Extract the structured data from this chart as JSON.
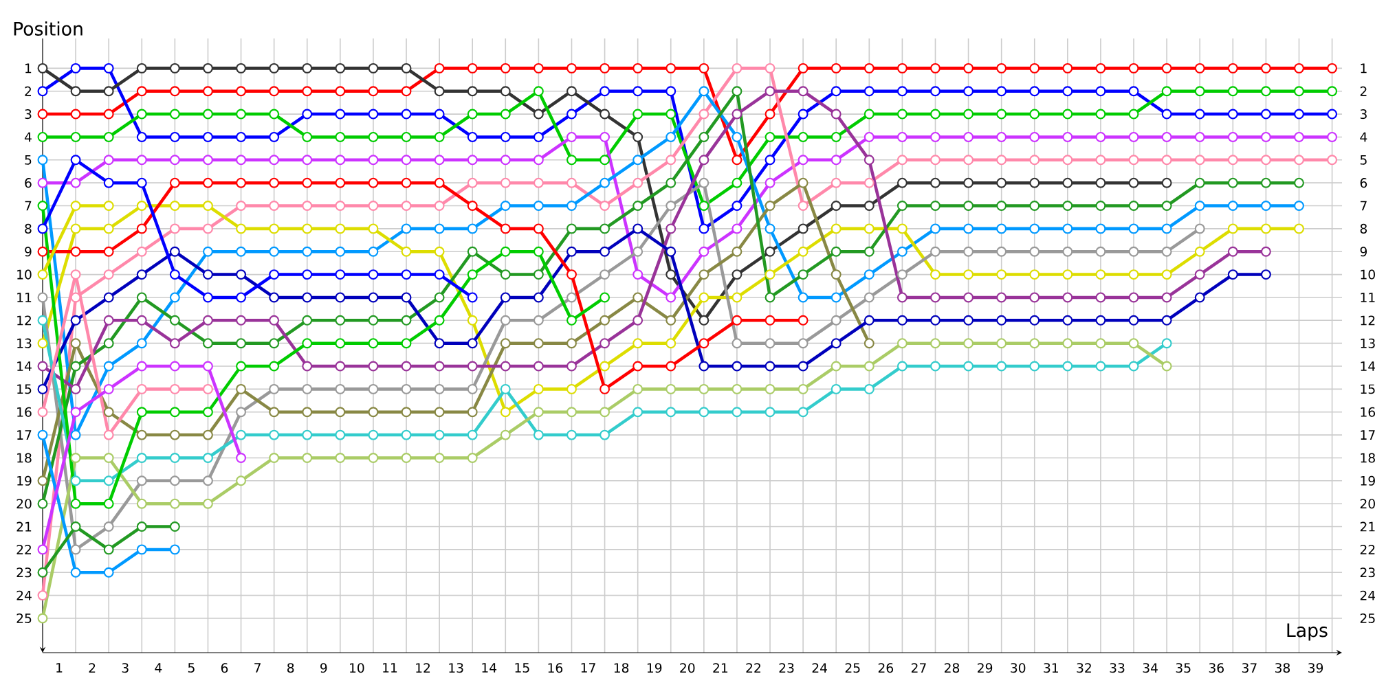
{
  "chart_data": {
    "type": "line",
    "xlabel": "Laps",
    "ylabel": "Position",
    "marker": "circle",
    "line_style": "solid",
    "grid": true,
    "x": [
      0,
      1,
      2,
      3,
      4,
      5,
      6,
      7,
      8,
      9,
      10,
      11,
      12,
      13,
      14,
      15,
      16,
      17,
      18,
      19,
      20,
      21,
      22,
      23,
      24,
      25,
      26,
      27,
      28,
      29,
      30,
      31,
      32,
      33,
      34,
      35,
      36,
      37,
      38,
      39
    ],
    "xlim": [
      0,
      39.3
    ],
    "ylim": [
      26.5,
      -0.3
    ],
    "y2lim": [
      26.5,
      -0.3
    ],
    "xticks": [
      {
        "value": 0,
        "label": null
      },
      {
        "value": 1,
        "label": null
      },
      {
        "value": 2,
        "label": null
      },
      {
        "value": 3,
        "label": null
      },
      {
        "value": 4,
        "label": null
      },
      {
        "value": 5,
        "label": null
      },
      {
        "value": 6,
        "label": null
      },
      {
        "value": 7,
        "label": null
      },
      {
        "value": 8,
        "label": null
      },
      {
        "value": 9,
        "label": null
      },
      {
        "value": 10,
        "label": null
      },
      {
        "value": 11,
        "label": null
      },
      {
        "value": 12,
        "label": null
      },
      {
        "value": 13,
        "label": null
      },
      {
        "value": 14,
        "label": null
      },
      {
        "value": 15,
        "label": null
      },
      {
        "value": 16,
        "label": null
      },
      {
        "value": 17,
        "label": null
      },
      {
        "value": 18,
        "label": null
      },
      {
        "value": 19,
        "label": null
      },
      {
        "value": 20,
        "label": null
      },
      {
        "value": 21,
        "label": null
      },
      {
        "value": 22,
        "label": null
      },
      {
        "value": 23,
        "label": null
      },
      {
        "value": 24,
        "label": null
      },
      {
        "value": 25,
        "label": null
      },
      {
        "value": 26,
        "label": null
      },
      {
        "value": 27,
        "label": null
      },
      {
        "value": 28,
        "label": null
      },
      {
        "value": 29,
        "label": null
      },
      {
        "value": 30,
        "label": null
      },
      {
        "value": 31,
        "label": null
      },
      {
        "value": 32,
        "label": null
      },
      {
        "value": 33,
        "label": null
      },
      {
        "value": 34,
        "label": null
      },
      {
        "value": 35,
        "label": null
      },
      {
        "value": 36,
        "label": null
      },
      {
        "value": 37,
        "label": null
      },
      {
        "value": 38,
        "label": null
      },
      {
        "value": 39,
        "label": null
      },
      {
        "value": 0.5,
        "label": "1"
      },
      {
        "value": 1.5,
        "label": "2"
      },
      {
        "value": 2.5,
        "label": "3"
      },
      {
        "value": 3.5,
        "label": "4"
      },
      {
        "value": 4.5,
        "label": "5"
      },
      {
        "value": 5.5,
        "label": "6"
      },
      {
        "value": 6.5,
        "label": "7"
      },
      {
        "value": 7.5,
        "label": "8"
      },
      {
        "value": 8.5,
        "label": "9"
      },
      {
        "value": 9.5,
        "label": "10"
      },
      {
        "value": 10.5,
        "label": "11"
      },
      {
        "value": 11.5,
        "label": "12"
      },
      {
        "value": 12.5,
        "label": "13"
      },
      {
        "value": 13.5,
        "label": "14"
      },
      {
        "value": 14.5,
        "label": "15"
      },
      {
        "value": 15.5,
        "label": "16"
      },
      {
        "value": 16.5,
        "label": "17"
      },
      {
        "value": 17.5,
        "label": "18"
      },
      {
        "value": 18.5,
        "label": "19"
      },
      {
        "value": 19.5,
        "label": "20"
      },
      {
        "value": 20.5,
        "label": "21"
      },
      {
        "value": 21.5,
        "label": "22"
      },
      {
        "value": 22.5,
        "label": "23"
      },
      {
        "value": 23.5,
        "label": "24"
      },
      {
        "value": 24.5,
        "label": "25"
      },
      {
        "value": 25.5,
        "label": "26"
      },
      {
        "value": 26.5,
        "label": "27"
      },
      {
        "value": 27.5,
        "label": "28"
      },
      {
        "value": 28.5,
        "label": "29"
      },
      {
        "value": 29.5,
        "label": "30"
      },
      {
        "value": 30.5,
        "label": "31"
      },
      {
        "value": 31.5,
        "label": "32"
      },
      {
        "value": 32.5,
        "label": "33"
      },
      {
        "value": 33.5,
        "label": "34"
      },
      {
        "value": 34.5,
        "label": "35"
      },
      {
        "value": 35.5,
        "label": "36"
      },
      {
        "value": 36.5,
        "label": "37"
      },
      {
        "value": 37.5,
        "label": "38"
      },
      {
        "value": 38.5,
        "label": "39"
      }
    ],
    "yticks": [
      1,
      2,
      3,
      4,
      5,
      6,
      7,
      8,
      9,
      10,
      11,
      12,
      13,
      14,
      15,
      16,
      17,
      18,
      19,
      20,
      21,
      22,
      23,
      24,
      25
    ],
    "y2ticks": [
      1,
      2,
      3,
      4,
      5,
      6,
      7,
      8,
      9,
      10,
      11,
      12,
      13,
      14,
      15,
      16,
      17,
      18,
      19,
      20,
      21,
      22,
      23,
      24,
      25
    ],
    "series": [
      {
        "color": "#ff0000",
        "values": [
          3,
          3,
          3,
          2,
          2,
          2,
          2,
          2,
          2,
          2,
          2,
          2,
          1,
          1,
          1,
          1,
          1,
          1,
          1,
          1,
          1,
          5,
          3,
          1,
          1,
          1,
          1,
          1,
          1,
          1,
          1,
          1,
          1,
          1,
          1,
          1,
          1,
          1,
          1,
          1
        ]
      },
      {
        "color": "#0000ff",
        "values": [
          2,
          1,
          1,
          4,
          4,
          4,
          4,
          4,
          3,
          3,
          3,
          3,
          3,
          4,
          4,
          4,
          3,
          2,
          2,
          2,
          8,
          7,
          5,
          3,
          2,
          2,
          2,
          2,
          2,
          2,
          2,
          2,
          2,
          2,
          3,
          3,
          3,
          3,
          3,
          3
        ]
      },
      {
        "color": "#333333",
        "values": [
          1,
          2,
          2,
          1,
          1,
          1,
          1,
          1,
          1,
          1,
          1,
          1,
          2,
          2,
          2,
          3,
          2,
          3,
          4,
          10,
          12,
          10,
          9,
          8,
          7,
          7,
          6,
          6,
          6,
          6,
          6,
          6,
          6,
          6,
          6,
          null,
          null,
          null,
          null,
          null
        ]
      },
      {
        "color": "#00cc00",
        "values": [
          4,
          4,
          4,
          3,
          3,
          3,
          3,
          3,
          4,
          4,
          4,
          4,
          4,
          3,
          3,
          2,
          5,
          5,
          3,
          3,
          7,
          6,
          4,
          4,
          4,
          3,
          3,
          3,
          3,
          3,
          3,
          3,
          3,
          3,
          2,
          2,
          2,
          2,
          2,
          2
        ]
      },
      {
        "color": "#cc33ff",
        "values": [
          6,
          6,
          5,
          5,
          5,
          5,
          5,
          5,
          5,
          5,
          5,
          5,
          5,
          5,
          5,
          5,
          4,
          4,
          10,
          11,
          9,
          8,
          6,
          5,
          5,
          4,
          4,
          4,
          4,
          4,
          4,
          4,
          4,
          4,
          4,
          4,
          4,
          4,
          4,
          4
        ]
      },
      {
        "color": "#ff88aa",
        "values": [
          24,
          11,
          10,
          9,
          8,
          8,
          7,
          7,
          7,
          7,
          7,
          7,
          7,
          6,
          6,
          6,
          6,
          7,
          6,
          5,
          3,
          1,
          1,
          7,
          6,
          6,
          5,
          5,
          5,
          5,
          5,
          5,
          5,
          5,
          5,
          5,
          5,
          5,
          5,
          5
        ]
      },
      {
        "color": "#0099ff",
        "values": [
          5,
          17,
          14,
          13,
          11,
          9,
          9,
          9,
          9,
          9,
          9,
          8,
          8,
          8,
          7,
          7,
          7,
          6,
          5,
          4,
          2,
          4,
          8,
          11,
          11,
          10,
          9,
          8,
          8,
          8,
          8,
          8,
          8,
          8,
          8,
          7,
          7,
          7,
          7,
          null
        ]
      },
      {
        "color": "#dddd00",
        "values": [
          13,
          8,
          8,
          7,
          7,
          7,
          8,
          8,
          8,
          8,
          8,
          9,
          9,
          12,
          16,
          15,
          15,
          14,
          13,
          13,
          11,
          11,
          10,
          9,
          8,
          8,
          8,
          10,
          10,
          10,
          10,
          10,
          10,
          10,
          10,
          9,
          8,
          8,
          8,
          null
        ]
      },
      {
        "color": "#999999",
        "values": [
          11,
          22,
          21,
          19,
          19,
          19,
          16,
          15,
          15,
          15,
          15,
          15,
          15,
          15,
          12,
          12,
          11,
          10,
          9,
          7,
          6,
          13,
          13,
          13,
          12,
          11,
          10,
          9,
          9,
          9,
          9,
          9,
          9,
          9,
          9,
          8,
          null,
          null,
          null,
          null
        ]
      },
      {
        "color": "#888844",
        "values": [
          19,
          13,
          16,
          17,
          17,
          17,
          15,
          16,
          16,
          16,
          16,
          16,
          16,
          16,
          13,
          13,
          13,
          12,
          11,
          12,
          10,
          9,
          7,
          6,
          10,
          13,
          null,
          null,
          null,
          null,
          null,
          null,
          null,
          null,
          null,
          null,
          null,
          null,
          null,
          null
        ]
      },
      {
        "color": "#229922",
        "values": [
          20,
          14,
          13,
          11,
          12,
          13,
          13,
          13,
          12,
          12,
          12,
          12,
          11,
          9,
          10,
          10,
          8,
          8,
          7,
          6,
          4,
          2,
          11,
          10,
          9,
          9,
          7,
          7,
          7,
          7,
          7,
          7,
          7,
          7,
          7,
          6,
          6,
          6,
          6,
          null
        ]
      },
      {
        "color": "#993399",
        "values": [
          14,
          15,
          12,
          12,
          13,
          12,
          12,
          12,
          14,
          14,
          14,
          14,
          14,
          14,
          14,
          14,
          14,
          13,
          12,
          8,
          5,
          3,
          2,
          2,
          3,
          5,
          11,
          11,
          11,
          11,
          11,
          11,
          11,
          11,
          11,
          10,
          9,
          9,
          null,
          null
        ]
      },
      {
        "color": "#0000bb",
        "values": [
          15,
          12,
          11,
          10,
          9,
          10,
          10,
          11,
          11,
          11,
          11,
          11,
          13,
          13,
          11,
          11,
          9,
          9,
          8,
          9,
          14,
          14,
          14,
          14,
          13,
          12,
          12,
          12,
          12,
          12,
          12,
          12,
          12,
          12,
          12,
          11,
          10,
          10,
          null,
          null
        ]
      },
      {
        "color": "#33cccc",
        "values": [
          12,
          19,
          19,
          18,
          18,
          18,
          17,
          17,
          17,
          17,
          17,
          17,
          17,
          17,
          15,
          17,
          17,
          17,
          16,
          16,
          16,
          16,
          16,
          16,
          15,
          15,
          14,
          14,
          14,
          14,
          14,
          14,
          14,
          14,
          13,
          null,
          null,
          null,
          null,
          null
        ]
      },
      {
        "color": "#aacc66",
        "values": [
          25,
          18,
          18,
          20,
          20,
          20,
          19,
          18,
          18,
          18,
          18,
          18,
          18,
          18,
          17,
          16,
          16,
          16,
          15,
          15,
          15,
          15,
          15,
          15,
          14,
          14,
          13,
          13,
          13,
          13,
          13,
          13,
          13,
          13,
          14,
          null,
          null,
          null,
          null,
          null
        ]
      },
      {
        "color": "#ff0000",
        "values": [
          9,
          9,
          9,
          8,
          6,
          6,
          6,
          6,
          6,
          6,
          6,
          6,
          6,
          7,
          8,
          8,
          10,
          15,
          14,
          14,
          13,
          12,
          12,
          12,
          null,
          null,
          null,
          null,
          null,
          null,
          null,
          null,
          null,
          null,
          null,
          null,
          null,
          null,
          null,
          null
        ]
      },
      {
        "color": "#00cc00",
        "values": [
          7,
          20,
          20,
          16,
          16,
          16,
          14,
          14,
          13,
          13,
          13,
          13,
          12,
          10,
          9,
          9,
          12,
          11,
          null,
          null,
          null,
          null,
          null,
          null,
          null,
          null,
          null,
          null,
          null,
          null,
          null,
          null,
          null,
          null,
          null,
          null,
          null,
          null,
          null,
          null
        ]
      },
      {
        "color": "#0000ff",
        "values": [
          8,
          5,
          6,
          6,
          10,
          11,
          11,
          10,
          10,
          10,
          10,
          10,
          10,
          11,
          null,
          null,
          null,
          null,
          null,
          null,
          null,
          null,
          null,
          null,
          null,
          null,
          null,
          null,
          null,
          null,
          null,
          null,
          null,
          null,
          null,
          null,
          null,
          null,
          null,
          null
        ]
      },
      {
        "color": "#dddd00",
        "values": [
          10,
          7,
          7,
          null,
          null,
          null,
          null,
          null,
          null,
          null,
          null,
          null,
          null,
          null,
          null,
          null,
          null,
          null,
          null,
          null,
          null,
          null,
          null,
          null,
          null,
          null,
          null,
          null,
          null,
          null,
          null,
          null,
          null,
          null,
          null,
          null,
          null,
          null,
          null,
          null
        ]
      },
      {
        "color": "#ff88aa",
        "values": [
          16,
          10,
          17,
          15,
          15,
          15,
          null,
          null,
          null,
          null,
          null,
          null,
          null,
          null,
          null,
          null,
          null,
          null,
          null,
          null,
          null,
          null,
          null,
          null,
          null,
          null,
          null,
          null,
          null,
          null,
          null,
          null,
          null,
          null,
          null,
          null,
          null,
          null,
          null,
          null
        ]
      },
      {
        "color": "#0099ff",
        "values": [
          17,
          23,
          23,
          22,
          22,
          null,
          null,
          null,
          null,
          null,
          null,
          null,
          null,
          null,
          null,
          null,
          null,
          null,
          null,
          null,
          null,
          null,
          null,
          null,
          null,
          null,
          null,
          null,
          null,
          null,
          null,
          null,
          null,
          null,
          null,
          null,
          null,
          null,
          null,
          null
        ]
      },
      {
        "color": "#229922",
        "values": [
          23,
          21,
          22,
          21,
          21,
          null,
          null,
          null,
          null,
          null,
          null,
          null,
          null,
          null,
          null,
          null,
          null,
          null,
          null,
          null,
          null,
          null,
          null,
          null,
          null,
          null,
          null,
          null,
          null,
          null,
          null,
          null,
          null,
          null,
          null,
          null,
          null,
          null,
          null,
          null
        ]
      },
      {
        "color": "#cc33ff",
        "values": [
          22,
          16,
          15,
          14,
          14,
          14,
          18,
          null,
          null,
          null,
          null,
          null,
          null,
          null,
          null,
          null,
          null,
          null,
          null,
          null,
          null,
          null,
          null,
          null,
          null,
          null,
          null,
          null,
          null,
          null,
          null,
          null,
          null,
          null,
          null,
          null,
          null,
          null,
          null,
          null
        ]
      }
    ]
  }
}
